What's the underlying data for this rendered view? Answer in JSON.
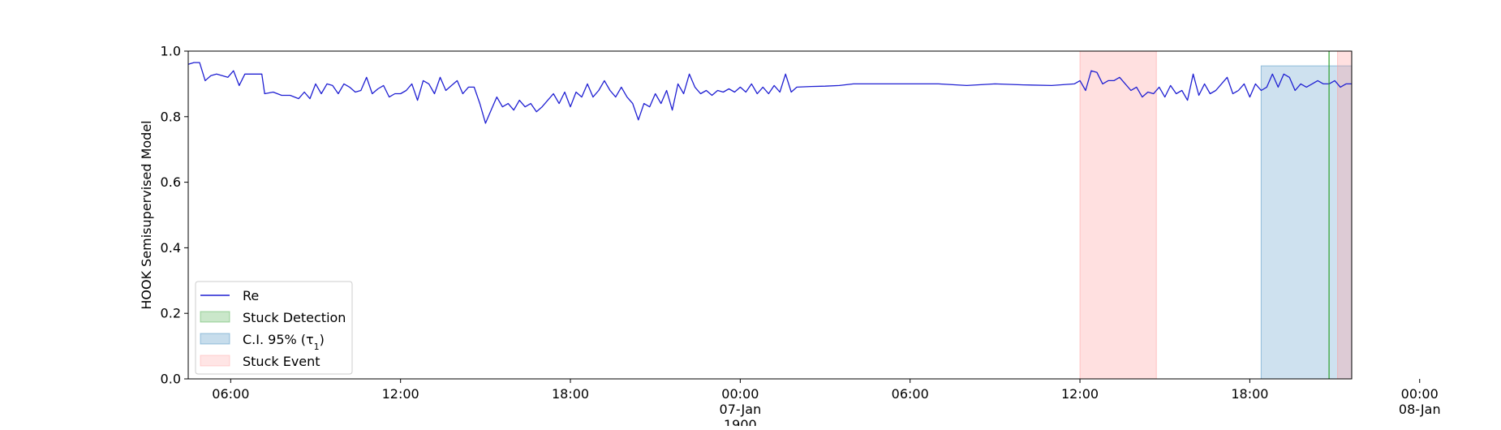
{
  "chart_data": {
    "type": "line",
    "title": "",
    "xlabel": "",
    "ylabel": "HOOK Semisupervised Model",
    "ylim": [
      0.0,
      1.0
    ],
    "xlim_hours": [
      -29.5,
      21.6
    ],
    "yticks": [
      {
        "value": 0.0,
        "label": "0.0"
      },
      {
        "value": 0.2,
        "label": "0.2"
      },
      {
        "value": 0.4,
        "label": "0.4"
      },
      {
        "value": 0.6,
        "label": "0.6"
      },
      {
        "value": 0.8,
        "label": "0.8"
      },
      {
        "value": 1.0,
        "label": "1.0"
      }
    ],
    "xticks": [
      {
        "hour": -18,
        "lines": [
          "06:00"
        ]
      },
      {
        "hour": -12,
        "lines": [
          "12:00"
        ]
      },
      {
        "hour": -6,
        "lines": [
          "18:00"
        ]
      },
      {
        "hour": 0,
        "lines": [
          "00:00",
          "07-Jan",
          "1900"
        ]
      },
      {
        "hour": 6,
        "lines": [
          "06:00"
        ]
      },
      {
        "hour": 12,
        "lines": [
          "12:00"
        ]
      },
      {
        "hour": 18,
        "lines": [
          "18:00"
        ]
      },
      {
        "hour": 24,
        "lines": [
          "00:00",
          "08-Jan"
        ]
      },
      {
        "hour": 30,
        "lines": [
          "06:00"
        ]
      }
    ],
    "grid": false,
    "legend_position": "lower-left",
    "legend": [
      {
        "label": "Re",
        "kind": "line",
        "color": "#1f1fd2"
      },
      {
        "label": "Stuck Detection",
        "kind": "patch",
        "color": "#2ca02c"
      },
      {
        "label": "C.I. 95% (τ",
        "subscript": "1",
        "label_suffix": ")",
        "kind": "patch",
        "color": "#1f77b4"
      },
      {
        "label": "Stuck Event",
        "kind": "patch",
        "color": "#ff9999"
      }
    ],
    "x_note": "x values in hours relative to 07-Jan 1900 00:00",
    "series": [
      {
        "name": "Re",
        "color": "#1f1fd2",
        "points": [
          [
            -19.5,
            0.96
          ],
          [
            -19.3,
            0.965
          ],
          [
            -19.1,
            0.965
          ],
          [
            -18.9,
            0.91
          ],
          [
            -18.7,
            0.925
          ],
          [
            -18.5,
            0.93
          ],
          [
            -18.3,
            0.925
          ],
          [
            -18.1,
            0.92
          ],
          [
            -17.9,
            0.94
          ],
          [
            -17.7,
            0.895
          ],
          [
            -17.5,
            0.93
          ],
          [
            -17.3,
            0.93
          ],
          [
            -17.1,
            0.93
          ],
          [
            -16.9,
            0.93
          ],
          [
            -16.8,
            0.87
          ],
          [
            -16.5,
            0.875
          ],
          [
            -16.2,
            0.865
          ],
          [
            -15.9,
            0.865
          ],
          [
            -15.6,
            0.855
          ],
          [
            -15.4,
            0.875
          ],
          [
            -15.2,
            0.855
          ],
          [
            -15.0,
            0.9
          ],
          [
            -14.8,
            0.87
          ],
          [
            -14.6,
            0.9
          ],
          [
            -14.4,
            0.895
          ],
          [
            -14.2,
            0.87
          ],
          [
            -14.0,
            0.9
          ],
          [
            -13.8,
            0.89
          ],
          [
            -13.6,
            0.875
          ],
          [
            -13.4,
            0.88
          ],
          [
            -13.2,
            0.92
          ],
          [
            -13.0,
            0.87
          ],
          [
            -12.8,
            0.885
          ],
          [
            -12.6,
            0.895
          ],
          [
            -12.4,
            0.86
          ],
          [
            -12.2,
            0.87
          ],
          [
            -12.0,
            0.87
          ],
          [
            -11.8,
            0.88
          ],
          [
            -11.6,
            0.9
          ],
          [
            -11.4,
            0.85
          ],
          [
            -11.2,
            0.91
          ],
          [
            -11.0,
            0.9
          ],
          [
            -10.8,
            0.87
          ],
          [
            -10.6,
            0.92
          ],
          [
            -10.4,
            0.88
          ],
          [
            -10.2,
            0.895
          ],
          [
            -10.0,
            0.91
          ],
          [
            -9.8,
            0.87
          ],
          [
            -9.6,
            0.89
          ],
          [
            -9.4,
            0.89
          ],
          [
            -9.2,
            0.84
          ],
          [
            -9.0,
            0.78
          ],
          [
            -8.8,
            0.82
          ],
          [
            -8.6,
            0.86
          ],
          [
            -8.4,
            0.83
          ],
          [
            -8.2,
            0.84
          ],
          [
            -8.0,
            0.82
          ],
          [
            -7.8,
            0.85
          ],
          [
            -7.6,
            0.83
          ],
          [
            -7.4,
            0.84
          ],
          [
            -7.2,
            0.815
          ],
          [
            -7.0,
            0.83
          ],
          [
            -6.8,
            0.85
          ],
          [
            -6.6,
            0.87
          ],
          [
            -6.4,
            0.84
          ],
          [
            -6.2,
            0.875
          ],
          [
            -6.0,
            0.83
          ],
          [
            -5.8,
            0.875
          ],
          [
            -5.6,
            0.86
          ],
          [
            -5.4,
            0.9
          ],
          [
            -5.2,
            0.86
          ],
          [
            -5.0,
            0.88
          ],
          [
            -4.8,
            0.91
          ],
          [
            -4.6,
            0.88
          ],
          [
            -4.4,
            0.86
          ],
          [
            -4.2,
            0.89
          ],
          [
            -4.0,
            0.86
          ],
          [
            -3.8,
            0.84
          ],
          [
            -3.6,
            0.79
          ],
          [
            -3.4,
            0.84
          ],
          [
            -3.2,
            0.83
          ],
          [
            -3.0,
            0.87
          ],
          [
            -2.8,
            0.84
          ],
          [
            -2.6,
            0.88
          ],
          [
            -2.4,
            0.82
          ],
          [
            -2.2,
            0.9
          ],
          [
            -2.0,
            0.87
          ],
          [
            -1.8,
            0.93
          ],
          [
            -1.6,
            0.89
          ],
          [
            -1.4,
            0.87
          ],
          [
            -1.2,
            0.88
          ],
          [
            -1.0,
            0.865
          ],
          [
            -0.8,
            0.88
          ],
          [
            -0.6,
            0.875
          ],
          [
            -0.4,
            0.885
          ],
          [
            -0.2,
            0.875
          ],
          [
            0.0,
            0.89
          ],
          [
            0.2,
            0.875
          ],
          [
            0.4,
            0.9
          ],
          [
            0.6,
            0.87
          ],
          [
            0.8,
            0.89
          ],
          [
            1.0,
            0.87
          ],
          [
            1.2,
            0.895
          ],
          [
            1.4,
            0.875
          ],
          [
            1.6,
            0.93
          ],
          [
            1.8,
            0.875
          ],
          [
            2.0,
            0.89
          ],
          [
            2.5,
            0.892
          ],
          [
            3.0,
            0.893
          ],
          [
            3.5,
            0.895
          ],
          [
            4.0,
            0.9
          ],
          [
            5.0,
            0.9
          ],
          [
            6.0,
            0.9
          ],
          [
            7.0,
            0.9
          ],
          [
            8.0,
            0.895
          ],
          [
            9.0,
            0.9
          ],
          [
            10.0,
            0.897
          ],
          [
            11.0,
            0.895
          ],
          [
            11.8,
            0.9
          ],
          [
            12.0,
            0.91
          ],
          [
            12.2,
            0.88
          ],
          [
            12.4,
            0.94
          ],
          [
            12.6,
            0.935
          ],
          [
            12.8,
            0.9
          ],
          [
            13.0,
            0.91
          ],
          [
            13.2,
            0.91
          ],
          [
            13.4,
            0.92
          ],
          [
            13.6,
            0.9
          ],
          [
            13.8,
            0.88
          ],
          [
            14.0,
            0.89
          ],
          [
            14.2,
            0.86
          ],
          [
            14.4,
            0.875
          ],
          [
            14.6,
            0.87
          ],
          [
            14.8,
            0.89
          ],
          [
            15.0,
            0.86
          ],
          [
            15.2,
            0.895
          ],
          [
            15.4,
            0.87
          ],
          [
            15.6,
            0.88
          ],
          [
            15.8,
            0.85
          ],
          [
            16.0,
            0.93
          ],
          [
            16.2,
            0.865
          ],
          [
            16.4,
            0.9
          ],
          [
            16.6,
            0.87
          ],
          [
            16.8,
            0.88
          ],
          [
            17.0,
            0.9
          ],
          [
            17.2,
            0.92
          ],
          [
            17.4,
            0.87
          ],
          [
            17.6,
            0.88
          ],
          [
            17.8,
            0.9
          ],
          [
            18.0,
            0.86
          ],
          [
            18.2,
            0.9
          ],
          [
            18.4,
            0.88
          ],
          [
            18.6,
            0.89
          ],
          [
            18.8,
            0.93
          ],
          [
            19.0,
            0.89
          ],
          [
            19.2,
            0.93
          ],
          [
            19.4,
            0.92
          ],
          [
            19.6,
            0.88
          ],
          [
            19.8,
            0.9
          ],
          [
            20.0,
            0.89
          ],
          [
            20.2,
            0.9
          ],
          [
            20.4,
            0.91
          ],
          [
            20.6,
            0.9
          ],
          [
            20.8,
            0.9
          ],
          [
            21.0,
            0.91
          ],
          [
            21.2,
            0.89
          ],
          [
            21.4,
            0.9
          ],
          [
            21.6,
            0.9
          ]
        ]
      }
    ],
    "shaded_regions": [
      {
        "name": "Stuck Event",
        "x_start": 12.0,
        "x_end": 14.7,
        "y_start": 0.0,
        "y_end": 1.0,
        "color": "#ff9999",
        "opacity": 0.3
      },
      {
        "name": "C.I. 95% (tau1)",
        "x_start": 18.4,
        "x_end": 21.6,
        "y_start": 0.0,
        "y_end": 0.955,
        "color": "#1f77b4",
        "opacity": 0.22
      },
      {
        "name": "Stuck Event (end)",
        "x_start": 21.1,
        "x_end": 21.6,
        "y_start": 0.0,
        "y_end": 1.0,
        "color": "#ff9999",
        "opacity": 0.3
      }
    ],
    "vertical_lines": [
      {
        "name": "Stuck Detection",
        "x": 20.8,
        "color": "#2ca02c"
      }
    ]
  }
}
